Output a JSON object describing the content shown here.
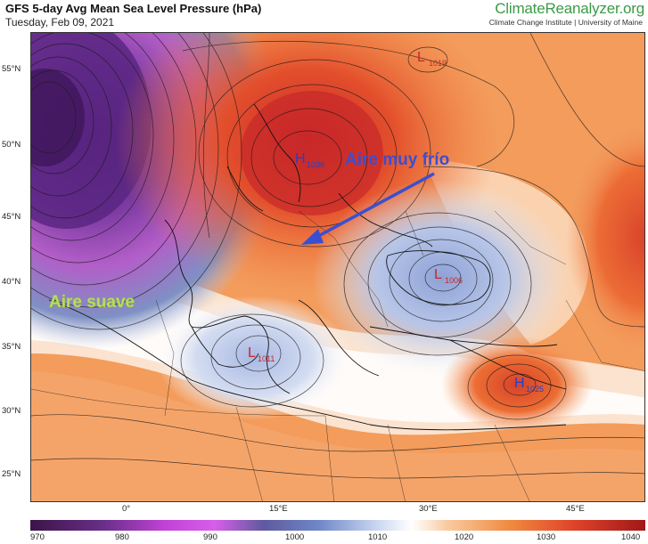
{
  "header": {
    "title": "GFS 5-day Avg Mean Sea Level Pressure (hPa)",
    "date": "Tuesday, Feb 09, 2021"
  },
  "brand": {
    "name": "ClimateReanalyzer",
    "tld": ".org",
    "subtitle": "Climate Change Institute | University of Maine"
  },
  "map": {
    "lat_labels": [
      "55°N",
      "50°N",
      "45°N",
      "40°N",
      "35°N",
      "30°N",
      "25°N"
    ],
    "lon_labels": [
      "0°",
      "15°E",
      "30°E",
      "45°E"
    ],
    "pressure_centers": [
      {
        "type": "L",
        "value": "1019"
      },
      {
        "type": "H",
        "value": "1036"
      },
      {
        "type": "L",
        "value": "1006"
      },
      {
        "type": "L",
        "value": "1011"
      },
      {
        "type": "H",
        "value": "1025"
      }
    ],
    "annotations": {
      "cold_air": "Aire muy frío",
      "mild_air": "Aire suave"
    },
    "colors": {
      "low": "#6a2f8a",
      "mid": "#ffffff",
      "high": "#e8502a",
      "arrow": "#3a4fd0",
      "mild_text": "#b8e05a"
    }
  },
  "colorbar": {
    "labels": [
      "970",
      "980",
      "990",
      "1000",
      "1010",
      "1020",
      "1030",
      "1040"
    ]
  }
}
